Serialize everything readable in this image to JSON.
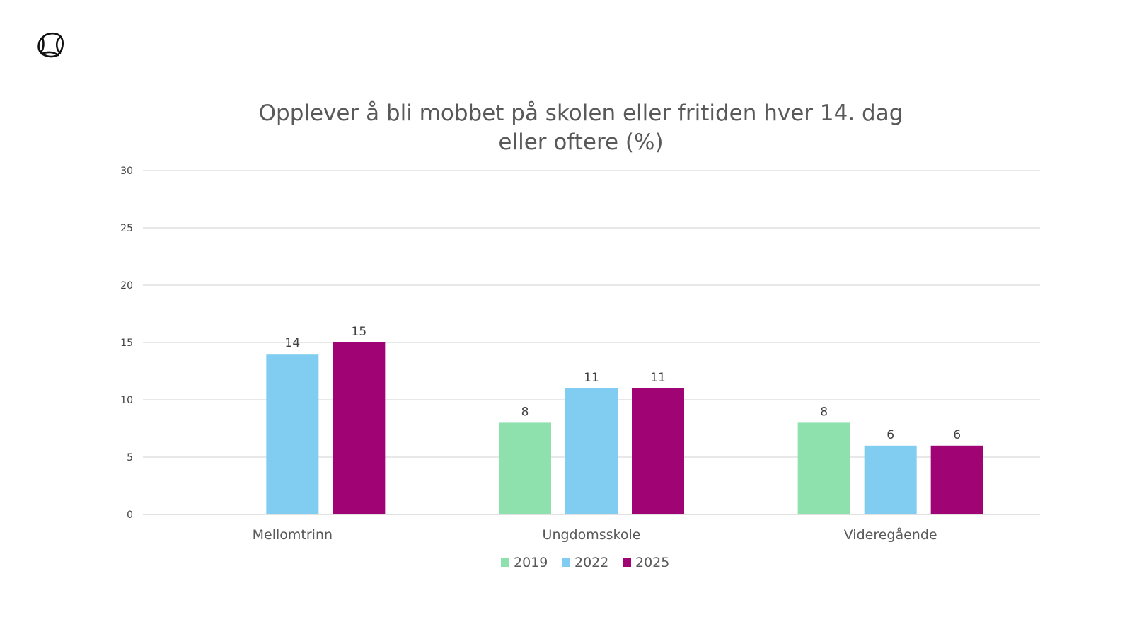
{
  "logo": {
    "icon": "circle-knot-logo-icon"
  },
  "chart_data": {
    "type": "bar",
    "title_lines": [
      "Opplever å bli mobbet på skolen eller fritiden hver 14. dag",
      "eller oftere (%)"
    ],
    "categories": [
      "Mellomtrinn",
      "Ungdomsskole",
      "Videregående"
    ],
    "series": [
      {
        "name": "2019",
        "color": "#8ee0ad",
        "values": [
          null,
          8,
          8
        ]
      },
      {
        "name": "2022",
        "color": "#81cdf2",
        "values": [
          14,
          11,
          6
        ]
      },
      {
        "name": "2025",
        "color": "#a00373",
        "values": [
          15,
          11,
          6
        ]
      }
    ],
    "ylim": [
      0,
      30
    ],
    "yticks": [
      0,
      5,
      10,
      15,
      20,
      25,
      30
    ],
    "grid": true,
    "legend": "bottom-center",
    "xlabel": "",
    "ylabel": ""
  }
}
